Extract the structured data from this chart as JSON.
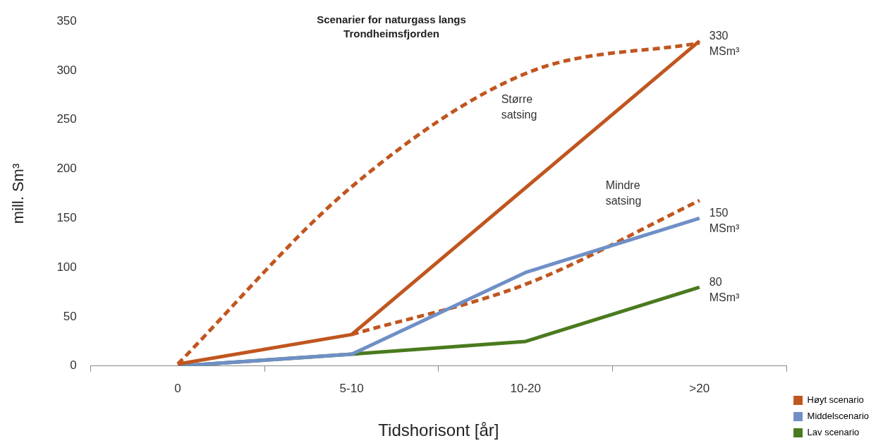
{
  "chart_data": {
    "type": "line",
    "title": "Scenarier for naturgass langs Trondheimsfjorden",
    "xlabel": "Tidshorisont [år]",
    "ylabel": "mill. Sm³",
    "categories": [
      "0",
      "5-10",
      "10-20",
      ">20"
    ],
    "ylim": [
      0,
      350
    ],
    "yticks": [
      0,
      50,
      100,
      150,
      200,
      250,
      300,
      350
    ],
    "grid": false,
    "legend": "bottom right",
    "marker": "none",
    "series": [
      {
        "name": "Høyt scenario",
        "color": "#c0561f",
        "values": [
          2,
          32,
          null,
          330
        ],
        "line_style": "solid"
      },
      {
        "name": "Middelscenario",
        "color": "#6f8fc6",
        "values": [
          0,
          12,
          95,
          150
        ],
        "line_style": "solid"
      },
      {
        "name": "Lav scenario",
        "color": "#4a7a1e",
        "values": [
          0,
          12,
          25,
          80
        ],
        "line_style": "solid"
      },
      {
        "color": "#c0561f",
        "values": [
          2,
          182,
          297,
          328
        ],
        "line_style": "dashed"
      },
      {
        "color": "#c0561f",
        "values": [
          null,
          32,
          83,
          168
        ],
        "line_style": "dashed"
      }
    ],
    "annotations": [
      "Større satsing",
      "Mindre satsing",
      {
        "text": "330 MSm³",
        "x": ">20",
        "y": 330
      },
      {
        "text": "150 MSm³",
        "x": ">20",
        "y": 150
      },
      {
        "text": "80 MSm³",
        "x": ">20",
        "y": 80
      }
    ]
  }
}
